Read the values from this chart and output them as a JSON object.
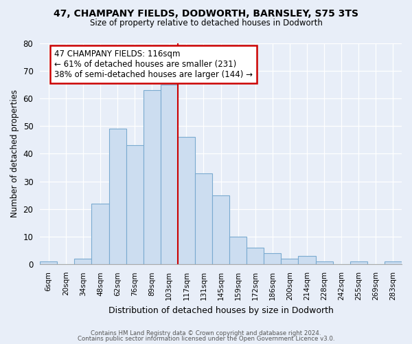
{
  "title": "47, CHAMPANY FIELDS, DODWORTH, BARNSLEY, S75 3TS",
  "subtitle": "Size of property relative to detached houses in Dodworth",
  "xlabel": "Distribution of detached houses by size in Dodworth",
  "ylabel": "Number of detached properties",
  "bar_labels": [
    "6sqm",
    "20sqm",
    "34sqm",
    "48sqm",
    "62sqm",
    "76sqm",
    "89sqm",
    "103sqm",
    "117sqm",
    "131sqm",
    "145sqm",
    "159sqm",
    "172sqm",
    "186sqm",
    "200sqm",
    "214sqm",
    "228sqm",
    "242sqm",
    "255sqm",
    "269sqm",
    "283sqm"
  ],
  "bar_heights": [
    1,
    0,
    2,
    22,
    49,
    43,
    63,
    65,
    46,
    33,
    25,
    10,
    6,
    4,
    2,
    3,
    1,
    0,
    1,
    0,
    1
  ],
  "bar_color": "#ccddf0",
  "bar_edgecolor": "#7aaad0",
  "vline_color": "#cc0000",
  "annotation_box_title": "47 CHAMPANY FIELDS: 116sqm",
  "annotation_line1": "← 61% of detached houses are smaller (231)",
  "annotation_line2": "38% of semi-detached houses are larger (144) →",
  "annotation_box_edgecolor": "#cc0000",
  "annotation_box_facecolor": "#ffffff",
  "ylim": [
    0,
    80
  ],
  "yticks": [
    0,
    10,
    20,
    30,
    40,
    50,
    60,
    70,
    80
  ],
  "footer1": "Contains HM Land Registry data © Crown copyright and database right 2024.",
  "footer2": "Contains public sector information licensed under the Open Government Licence v3.0.",
  "bg_color": "#e8eef8",
  "plot_bg_color": "#e8eef8",
  "grid_color": "#ffffff"
}
